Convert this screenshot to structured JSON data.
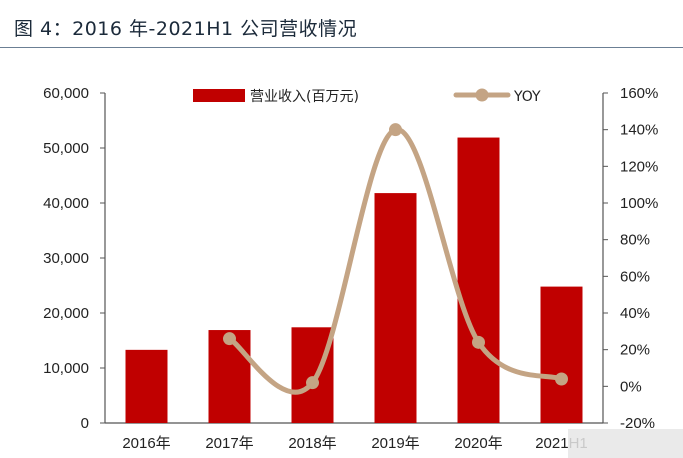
{
  "figure_title": "图 4：2016 年-2021H1 公司营收情况",
  "chart_data": {
    "type": "bar",
    "categories": [
      "2016年",
      "2017年",
      "2018年",
      "2019年",
      "2020年",
      "2021H1"
    ],
    "series": [
      {
        "name": "营业收入(百万元)",
        "type": "bar",
        "axis": "left",
        "color": "#c00000",
        "values": [
          13300,
          16900,
          17400,
          41800,
          51900,
          24800
        ]
      },
      {
        "name": "YOY",
        "type": "line",
        "axis": "right",
        "color": "#c4a484",
        "values": [
          null,
          26,
          2,
          140,
          24,
          4
        ]
      }
    ],
    "y_left": {
      "lim": [
        0,
        60000
      ],
      "ticks": [
        "0",
        "10,000",
        "20,000",
        "30,000",
        "40,000",
        "50,000",
        "60,000"
      ]
    },
    "y_right": {
      "lim": [
        -20,
        160
      ],
      "ticks": [
        "-20%",
        "0%",
        "20%",
        "40%",
        "60%",
        "80%",
        "100%",
        "120%",
        "140%",
        "160%"
      ]
    },
    "legend_position": "top",
    "grid": false
  }
}
